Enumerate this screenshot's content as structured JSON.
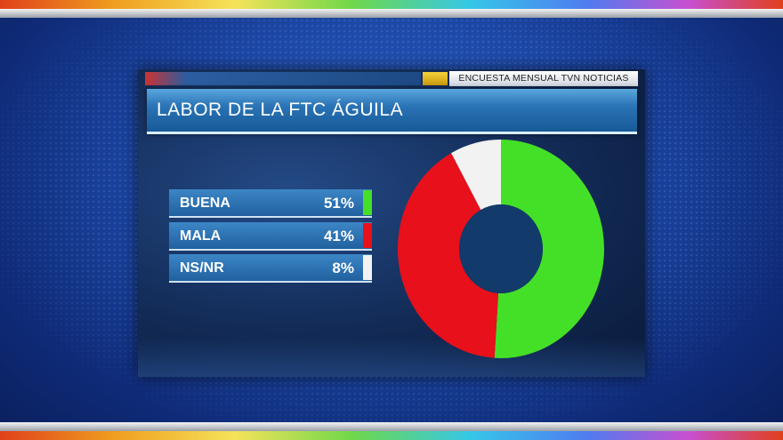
{
  "header": {
    "source": "ENCUESTA MENSUAL TVN NOTICIAS",
    "title": "LABOR DE LA FTC ÁGUILA"
  },
  "colors": {
    "buena": "#44e028",
    "mala": "#e8101a",
    "nsnr": "#f2f2f2"
  },
  "chart_data": {
    "type": "pie",
    "style": "donut",
    "categories": [
      "BUENA",
      "MALA",
      "NS/NR"
    ],
    "values": [
      51,
      41,
      8
    ],
    "labels": [
      "51%",
      "41%",
      "8%"
    ],
    "colors": [
      "#44e028",
      "#e8101a",
      "#f2f2f2"
    ]
  }
}
